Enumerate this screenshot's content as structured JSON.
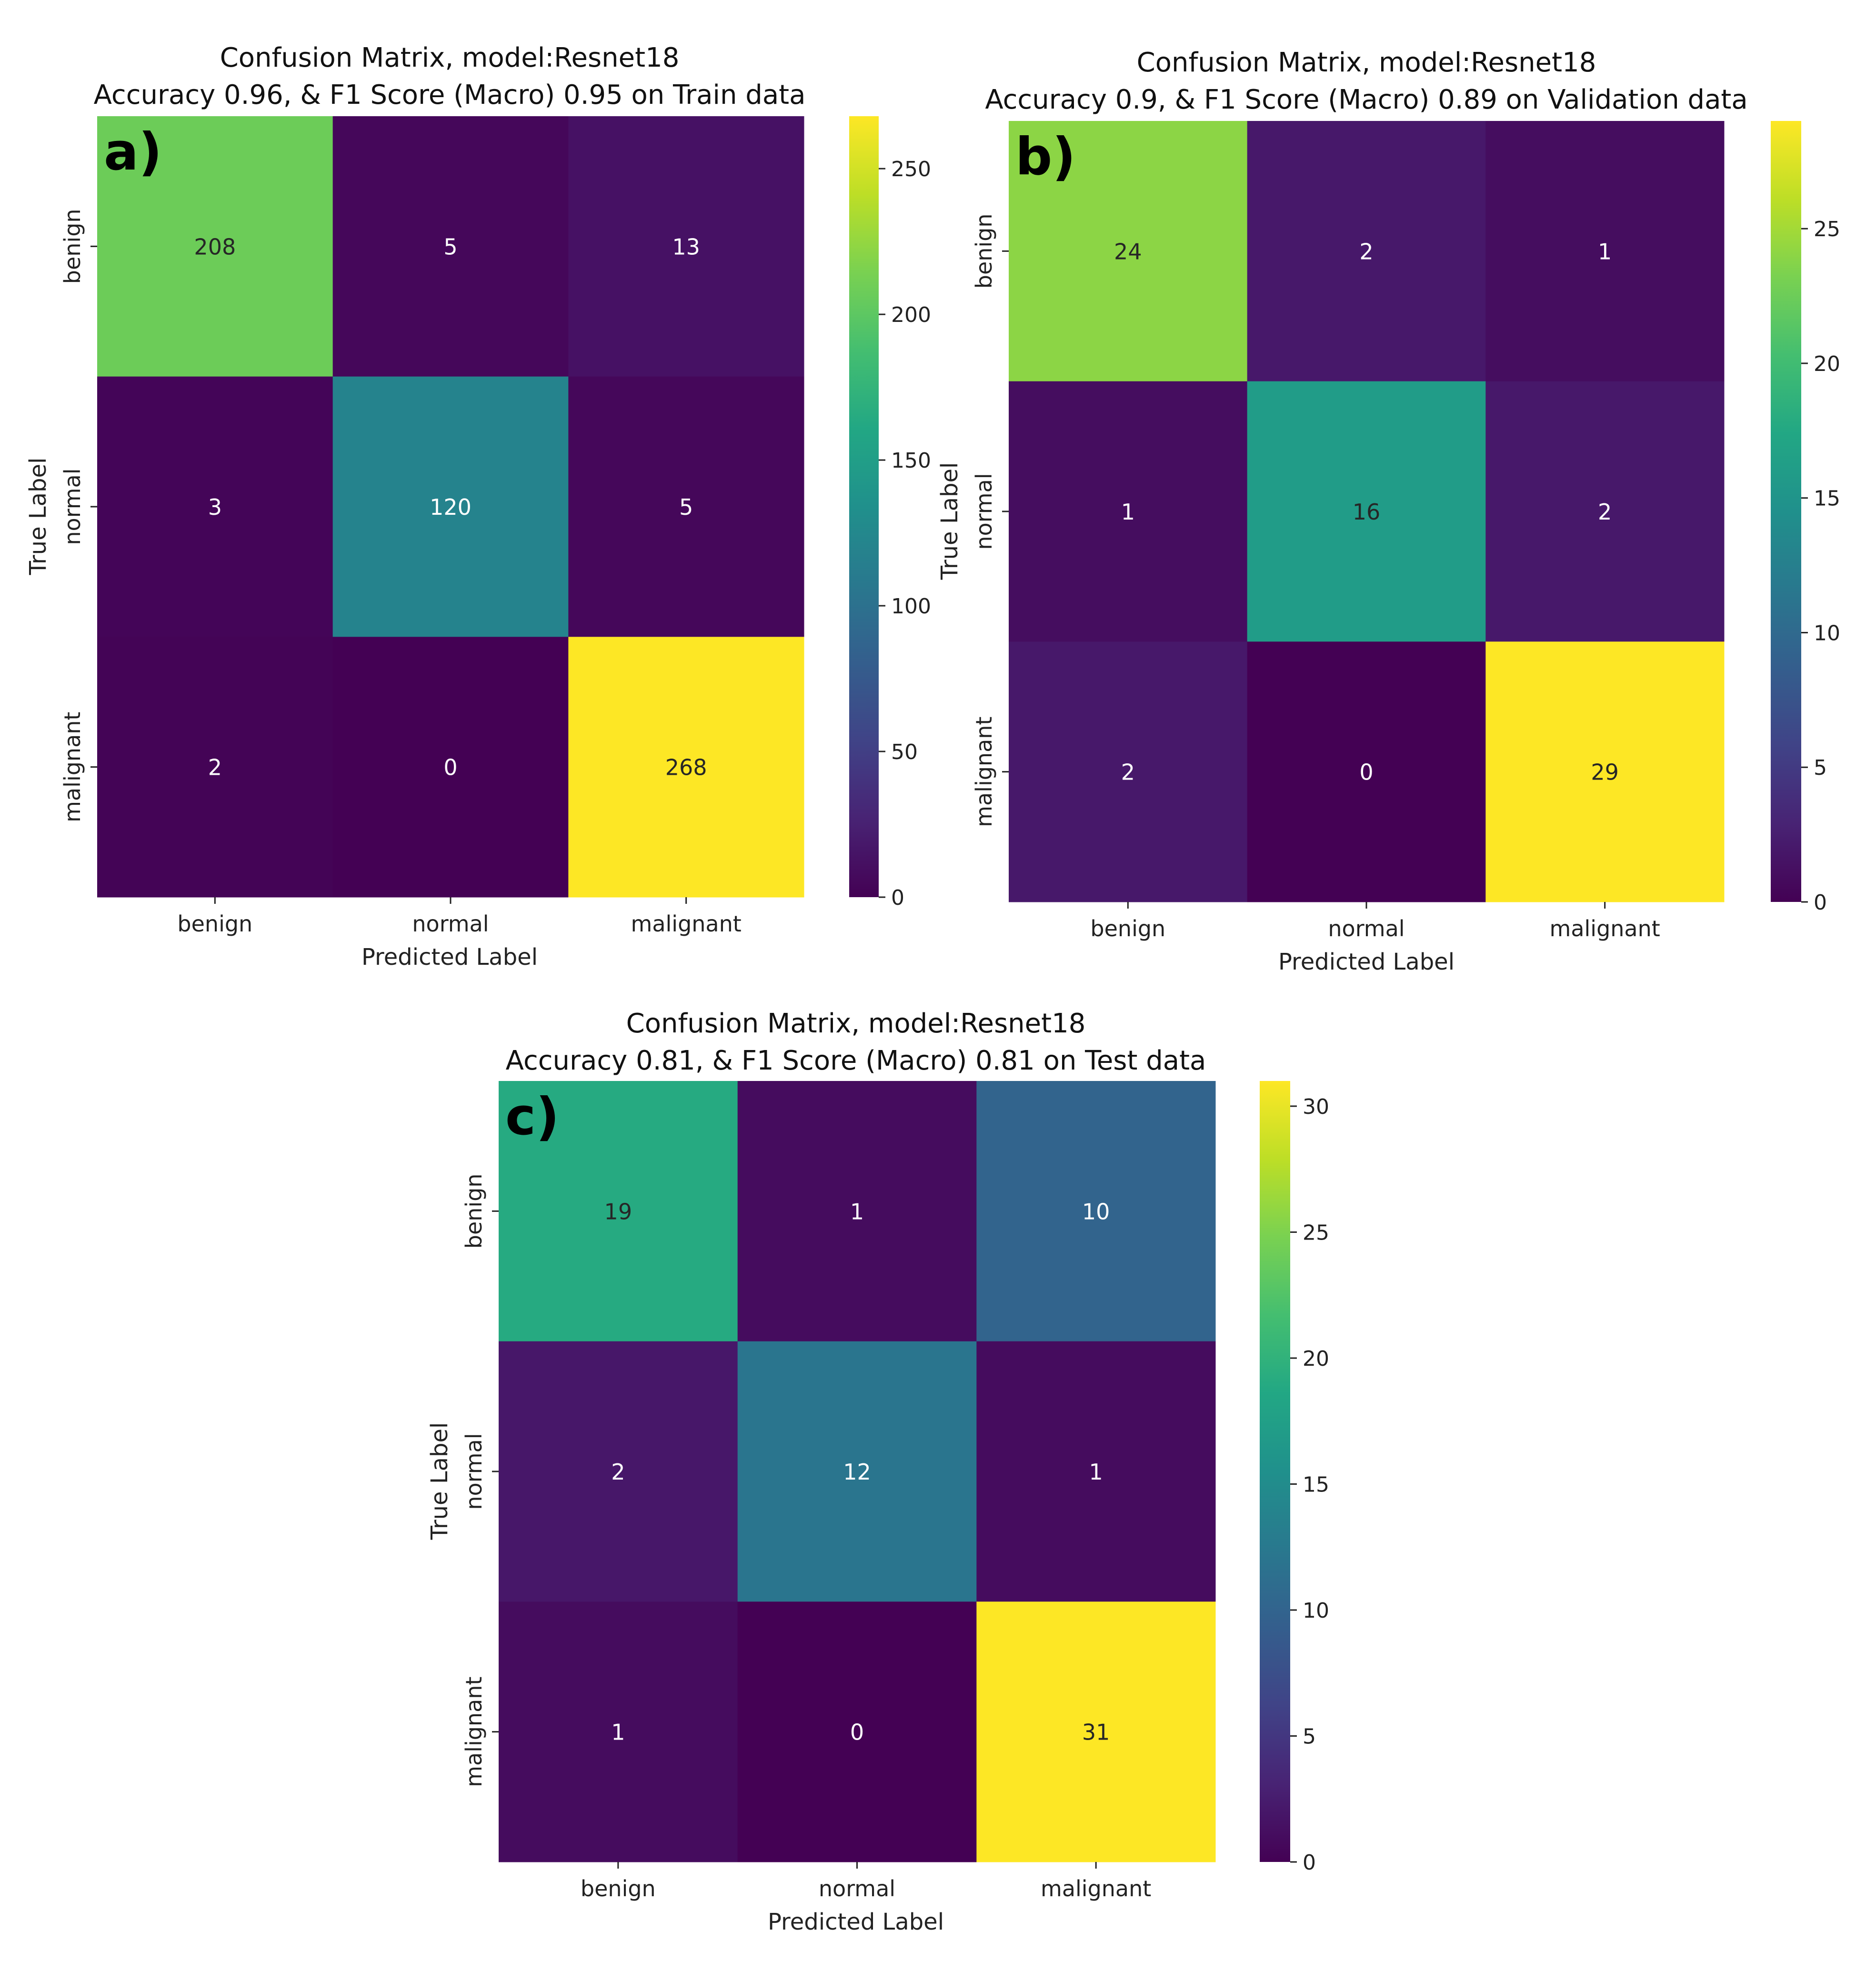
{
  "figure": {
    "panels": [
      "a)",
      "b)",
      "c)"
    ]
  },
  "chart_data": [
    {
      "type": "heatmap",
      "panel_label": "a)",
      "title_line1": "Confusion Matrix, model:Resnet18",
      "title_line2": "Accuracy 0.96, & F1 Score (Macro) 0.95 on Train data",
      "xlabel": "Predicted Label",
      "ylabel": "True Label",
      "x_categories": [
        "benign",
        "normal",
        "malignant"
      ],
      "y_categories": [
        "benign",
        "normal",
        "malignant"
      ],
      "matrix": [
        [
          208,
          5,
          13
        ],
        [
          3,
          120,
          5
        ],
        [
          2,
          0,
          268
        ]
      ],
      "colormap": "viridis",
      "vmin": 0,
      "vmax": 268,
      "colorbar_ticks": [
        0,
        50,
        100,
        150,
        200,
        250
      ]
    },
    {
      "type": "heatmap",
      "panel_label": "b)",
      "title_line1": "Confusion Matrix, model:Resnet18",
      "title_line2": "Accuracy 0.9, & F1 Score (Macro) 0.89 on Validation data",
      "xlabel": "Predicted Label",
      "ylabel": "True Label",
      "x_categories": [
        "benign",
        "normal",
        "malignant"
      ],
      "y_categories": [
        "benign",
        "normal",
        "malignant"
      ],
      "matrix": [
        [
          24,
          2,
          1
        ],
        [
          1,
          16,
          2
        ],
        [
          2,
          0,
          29
        ]
      ],
      "colormap": "viridis",
      "vmin": 0,
      "vmax": 29,
      "colorbar_ticks": [
        0,
        5,
        10,
        15,
        20,
        25
      ]
    },
    {
      "type": "heatmap",
      "panel_label": "c)",
      "title_line1": "Confusion Matrix, model:Resnet18",
      "title_line2": "Accuracy 0.81, & F1 Score (Macro) 0.81 on Test data",
      "xlabel": "Predicted Label",
      "ylabel": "True Label",
      "x_categories": [
        "benign",
        "normal",
        "malignant"
      ],
      "y_categories": [
        "benign",
        "normal",
        "malignant"
      ],
      "matrix": [
        [
          19,
          1,
          10
        ],
        [
          2,
          12,
          1
        ],
        [
          1,
          0,
          31
        ]
      ],
      "colormap": "viridis",
      "vmin": 0,
      "vmax": 31,
      "colorbar_ticks": [
        0,
        5,
        10,
        15,
        20,
        25,
        30
      ]
    }
  ]
}
